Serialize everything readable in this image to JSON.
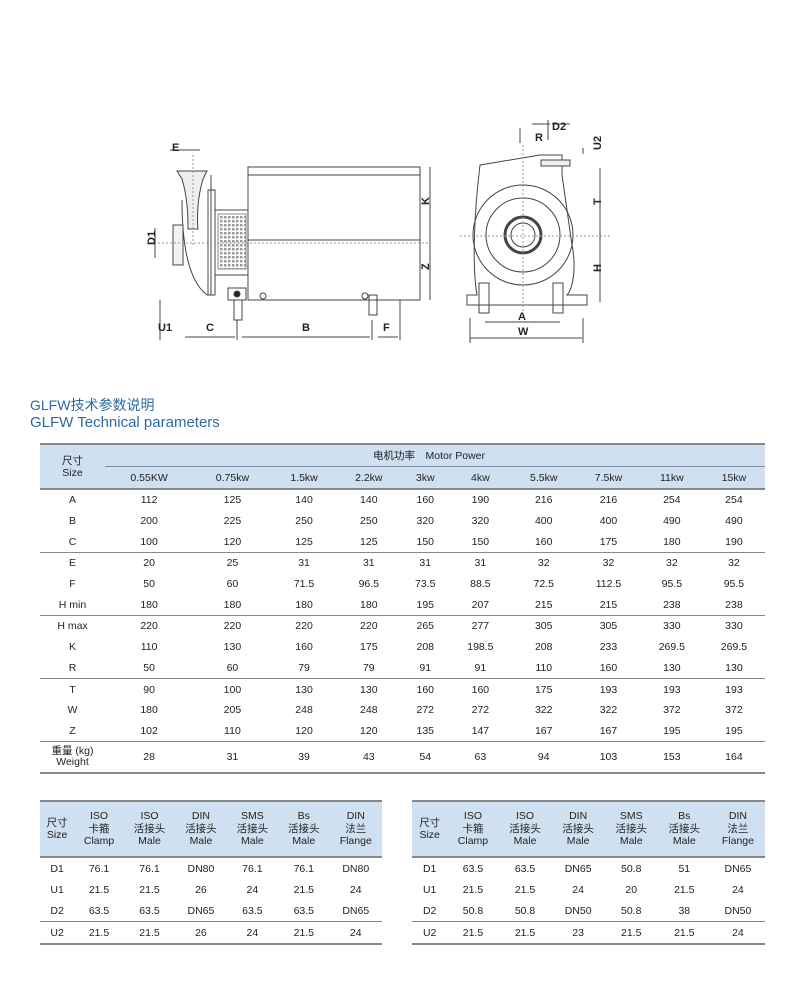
{
  "drawing": {
    "side_view_labels": [
      "E",
      "D1",
      "K",
      "Z",
      "U1",
      "C",
      "B",
      "F"
    ],
    "front_view_labels": [
      "D2",
      "R",
      "U2",
      "T",
      "H",
      "A",
      "W"
    ]
  },
  "title": {
    "cn": "GLFW技术参数说明",
    "en": "GLFW Technical parameters"
  },
  "main_table": {
    "size_header_cn": "尺寸",
    "size_header_en": "Size",
    "motor_power_label": "电机功率　Motor Power",
    "columns": [
      "0.55KW",
      "0.75kw",
      "1.5kw",
      "2.2kw",
      "3kw",
      "4kw",
      "5.5kw",
      "7.5kw",
      "11kw",
      "15kw"
    ],
    "rows": [
      {
        "label": "A",
        "values": [
          "112",
          "125",
          "140",
          "140",
          "160",
          "190",
          "216",
          "216",
          "254",
          "254"
        ]
      },
      {
        "label": "B",
        "values": [
          "200",
          "225",
          "250",
          "250",
          "320",
          "320",
          "400",
          "400",
          "490",
          "490"
        ]
      },
      {
        "label": "C",
        "values": [
          "100",
          "120",
          "125",
          "125",
          "150",
          "150",
          "160",
          "175",
          "180",
          "190"
        ],
        "sep": true
      },
      {
        "label": "E",
        "values": [
          "20",
          "25",
          "31",
          "31",
          "31",
          "31",
          "32",
          "32",
          "32",
          "32"
        ]
      },
      {
        "label": "F",
        "values": [
          "50",
          "60",
          "71.5",
          "96.5",
          "73.5",
          "88.5",
          "72.5",
          "112.5",
          "95.5",
          "95.5"
        ]
      },
      {
        "label": "H min",
        "values": [
          "180",
          "180",
          "180",
          "180",
          "195",
          "207",
          "215",
          "215",
          "238",
          "238"
        ],
        "sep": true
      },
      {
        "label": "H max",
        "values": [
          "220",
          "220",
          "220",
          "220",
          "265",
          "277",
          "305",
          "305",
          "330",
          "330"
        ]
      },
      {
        "label": "K",
        "values": [
          "110",
          "130",
          "160",
          "175",
          "208",
          "198.5",
          "208",
          "233",
          "269.5",
          "269.5"
        ]
      },
      {
        "label": "R",
        "values": [
          "50",
          "60",
          "79",
          "79",
          "91",
          "91",
          "110",
          "160",
          "130",
          "130"
        ],
        "sep": true
      },
      {
        "label": "T",
        "values": [
          "90",
          "100",
          "130",
          "130",
          "160",
          "160",
          "175",
          "193",
          "193",
          "193"
        ]
      },
      {
        "label": "W",
        "values": [
          "180",
          "205",
          "248",
          "248",
          "272",
          "272",
          "322",
          "322",
          "372",
          "372"
        ]
      },
      {
        "label": "Z",
        "values": [
          "102",
          "110",
          "120",
          "120",
          "135",
          "147",
          "167",
          "167",
          "195",
          "195"
        ],
        "sep": true
      },
      {
        "label": "重量 (kg)\nWeight",
        "values": [
          "28",
          "31",
          "39",
          "43",
          "54",
          "63",
          "94",
          "103",
          "153",
          "164"
        ],
        "weight": true
      }
    ]
  },
  "connection_tables": [
    {
      "headers": [
        "尺寸\nSize",
        "ISO\n卡箍\nClamp",
        "ISO\n活接头\nMale",
        "DIN\n活接头\nMale",
        "SMS\n活接头\nMale",
        "Bs\n活接头\nMale",
        "DIN\n法兰\nFlange"
      ],
      "rows": [
        [
          "D1",
          "76.1",
          "76.1",
          "DN80",
          "76.1",
          "76.1",
          "DN80"
        ],
        [
          "U1",
          "21.5",
          "21.5",
          "26",
          "24",
          "21.5",
          "24"
        ],
        [
          "D2",
          "63.5",
          "63.5",
          "DN65",
          "63.5",
          "63.5",
          "DN65"
        ],
        [
          "U2",
          "21.5",
          "21.5",
          "26",
          "24",
          "21.5",
          "24"
        ]
      ]
    },
    {
      "headers": [
        "尺寸\nSize",
        "ISO\n卡箍\nClamp",
        "ISO\n活接头\nMale",
        "DIN\n活接头\nMale",
        "SMS\n活接头\nMale",
        "Bs\n活接头\nMale",
        "DIN\n法兰\nFlange"
      ],
      "rows": [
        [
          "D1",
          "63.5",
          "63.5",
          "DN65",
          "50.8",
          "51",
          "DN65"
        ],
        [
          "U1",
          "21.5",
          "21.5",
          "24",
          "20",
          "21.5",
          "24"
        ],
        [
          "D2",
          "50.8",
          "50.8",
          "DN50",
          "50.8",
          "38",
          "DN50"
        ],
        [
          "U2",
          "21.5",
          "21.5",
          "23",
          "21.5",
          "21.5",
          "24"
        ]
      ]
    }
  ],
  "colors": {
    "header_bg": "#cfe0f0",
    "title": "#2b6aa6"
  }
}
